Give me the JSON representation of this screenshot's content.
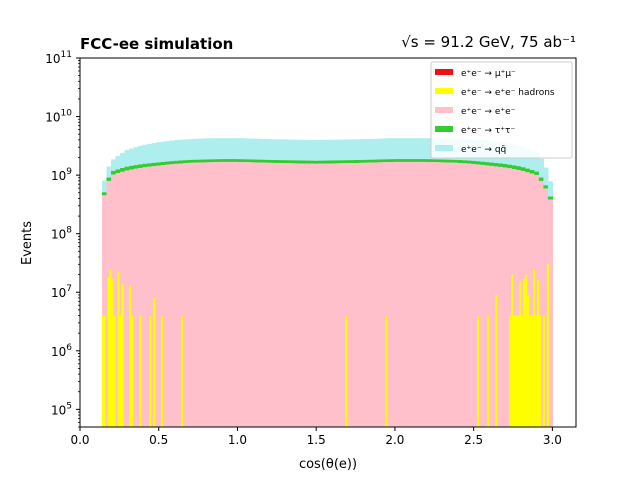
{
  "chart_data": {
    "type": "histogram",
    "title_left": "FCC-ee simulation",
    "title_right": "√s = 91.2 GeV, 75 ab⁻¹",
    "xlabel": "cos(θ(e))",
    "ylabel": "Events",
    "xlim": [
      0.0,
      3.15
    ],
    "ylim": [
      50000,
      100000000000
    ],
    "yscale": "log",
    "x_ticks": [
      "0.0",
      "0.5",
      "1.0",
      "1.5",
      "2.0",
      "2.5",
      "3.0"
    ],
    "y_ticks": [
      "10^5",
      "10^6",
      "10^7",
      "10^8",
      "10^9",
      "10^10",
      "10^11"
    ],
    "stacked": true,
    "legend_position": "top-right",
    "series": [
      {
        "name": "e⁺e⁻ → μ⁺μ⁻",
        "color": "#ee1111",
        "visible_bins": "none"
      },
      {
        "name": "e⁺e⁻ → e⁺e⁻ hadrons",
        "color": "#ffff00",
        "bins": [
          {
            "x": [
              0.138,
              0.15
            ],
            "y": 4000000
          },
          {
            "x": [
              0.15,
              0.163
            ],
            "y": 4000000
          },
          {
            "x": [
              0.175,
              0.188
            ],
            "y": 18000000
          },
          {
            "x": [
              0.188,
              0.2
            ],
            "y": 25000000
          },
          {
            "x": [
              0.2,
              0.213
            ],
            "y": 17000000
          },
          {
            "x": [
              0.213,
              0.226
            ],
            "y": 4000000
          },
          {
            "x": [
              0.238,
              0.251
            ],
            "y": 22000000
          },
          {
            "x": [
              0.251,
              0.264
            ],
            "y": 4000000
          },
          {
            "x": [
              0.264,
              0.277
            ],
            "y": 14000000
          },
          {
            "x": [
              0.313,
              0.326
            ],
            "y": 13000000
          },
          {
            "x": [
              0.326,
              0.339
            ],
            "y": 4000000
          },
          {
            "x": [
              0.377,
              0.39
            ],
            "y": 4000000
          },
          {
            "x": [
              0.44,
              0.453
            ],
            "y": 4000000
          },
          {
            "x": [
              0.465,
              0.478
            ],
            "y": 8000000
          },
          {
            "x": [
              0.515,
              0.528
            ],
            "y": 4000000
          },
          {
            "x": [
              0.642,
              0.655
            ],
            "y": 4000000
          },
          {
            "x": [
              1.685,
              1.698
            ],
            "y": 4000000
          },
          {
            "x": [
              1.94,
              1.953
            ],
            "y": 4000000
          },
          {
            "x": [
              2.522,
              2.535
            ],
            "y": 4000000
          },
          {
            "x": [
              2.587,
              2.6
            ],
            "y": 4000000
          },
          {
            "x": [
              2.637,
              2.65
            ],
            "y": 9000000
          },
          {
            "x": [
              2.725,
              2.738
            ],
            "y": 4000000
          },
          {
            "x": [
              2.738,
              2.751
            ],
            "y": 20000000
          },
          {
            "x": [
              2.751,
              2.764
            ],
            "y": 4000000
          },
          {
            "x": [
              2.764,
              2.777
            ],
            "y": 4000000
          },
          {
            "x": [
              2.777,
              2.79
            ],
            "y": 4000000
          },
          {
            "x": [
              2.79,
              2.803
            ],
            "y": 15000000
          },
          {
            "x": [
              2.803,
              2.815
            ],
            "y": 4000000
          },
          {
            "x": [
              2.815,
              2.827
            ],
            "y": 17000000
          },
          {
            "x": [
              2.827,
              2.84
            ],
            "y": 20000000
          },
          {
            "x": [
              2.84,
              2.852
            ],
            "y": 9000000
          },
          {
            "x": [
              2.852,
              2.865
            ],
            "y": 4000000
          },
          {
            "x": [
              2.865,
              2.878
            ],
            "y": 4000000
          },
          {
            "x": [
              2.878,
              2.89
            ],
            "y": 24000000
          },
          {
            "x": [
              2.89,
              2.903
            ],
            "y": 4000000
          },
          {
            "x": [
              2.903,
              2.916
            ],
            "y": 16000000
          },
          {
            "x": [
              2.916,
              2.928
            ],
            "y": 4000000
          },
          {
            "x": [
              2.94,
              2.953
            ],
            "y": 4000000
          },
          {
            "x": [
              2.965,
              2.978
            ],
            "y": 30000000
          }
        ]
      },
      {
        "name": "e⁺e⁻ → e⁺e⁻",
        "color": "#ffc0cb",
        "x": [
          0.14,
          0.2,
          0.3,
          0.4,
          0.5,
          0.6,
          0.7,
          0.8,
          0.9,
          1.0,
          1.2,
          1.5,
          1.8,
          2.0,
          2.2,
          2.4,
          2.5,
          2.6,
          2.7,
          2.8,
          2.9,
          3.0
        ],
        "y": [
          280000000,
          1000000000,
          1200000000,
          1350000000,
          1450000000,
          1550000000,
          1620000000,
          1650000000,
          1680000000,
          1680000000,
          1620000000,
          1560000000,
          1620000000,
          1680000000,
          1680000000,
          1620000000,
          1550000000,
          1450000000,
          1350000000,
          1200000000,
          1000000000,
          280000000
        ]
      },
      {
        "name": "e⁺e⁻ → τ⁺τ⁻",
        "color": "#33cc33",
        "x": [
          0.14,
          0.2,
          0.3,
          0.4,
          0.5,
          0.6,
          0.7,
          0.8,
          0.9,
          1.0,
          1.2,
          1.5,
          1.8,
          2.0,
          2.2,
          2.4,
          2.5,
          2.6,
          2.7,
          2.8,
          2.9,
          3.0
        ],
        "y": [
          30000000,
          150000000,
          200000000,
          200000000,
          200000000,
          200000000,
          200000000,
          200000000,
          200000000,
          200000000,
          200000000,
          200000000,
          200000000,
          200000000,
          200000000,
          200000000,
          200000000,
          200000000,
          200000000,
          200000000,
          150000000,
          30000000
        ]
      },
      {
        "name": "e⁺e⁻ → qq̄",
        "color": "#aeeeee",
        "x": [
          0.14,
          0.2,
          0.3,
          0.4,
          0.5,
          0.6,
          0.7,
          0.8,
          0.9,
          1.0,
          1.2,
          1.5,
          1.8,
          2.0,
          2.2,
          2.4,
          2.5,
          2.6,
          2.7,
          2.8,
          2.9,
          3.0
        ],
        "y": [
          200000000,
          600000000,
          1300000000,
          1700000000,
          2000000000,
          2200000000,
          2300000000,
          2400000000,
          2400000000,
          2400000000,
          2300000000,
          2200000000,
          2300000000,
          2400000000,
          2400000000,
          2400000000,
          2300000000,
          2200000000,
          2000000000,
          1700000000,
          1300000000,
          200000000
        ]
      }
    ]
  }
}
